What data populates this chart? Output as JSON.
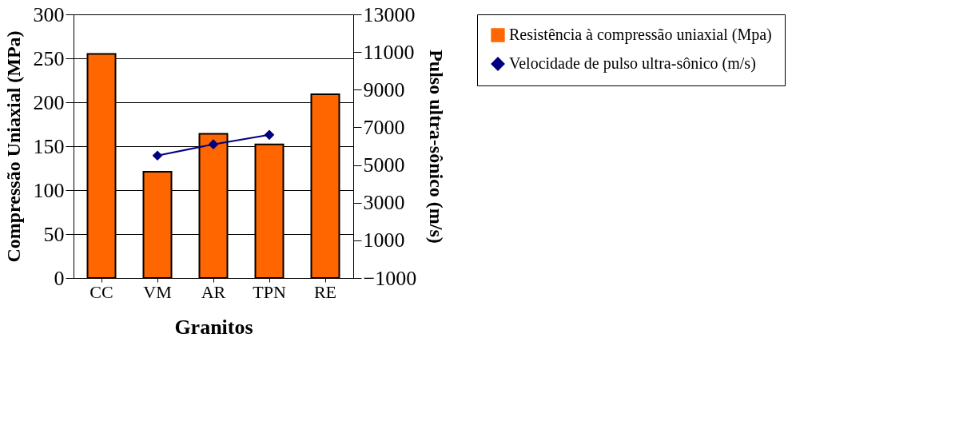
{
  "chart_data": {
    "type": "bar",
    "categories": [
      "CC",
      "VM",
      "AR",
      "TPN",
      "RE"
    ],
    "xlabel": "Granitos",
    "ylabel": "Compressão Uniaxial (MPa)",
    "y2label": "Pulso ultra-sônico (m/s)",
    "series": [
      {
        "name": "Resistência à compressão uniaxial (Mpa)",
        "color": "#ff6600",
        "values": [
          255,
          121,
          164,
          152,
          209
        ]
      },
      {
        "name": "Velocidade de pulso ultra-sônico (m/s)",
        "type": "line",
        "axis": "y2",
        "color": "#000080",
        "marker": "diamond",
        "values": [
          null,
          5500,
          6100,
          6600,
          null
        ]
      }
    ],
    "ylim": [
      0,
      300
    ],
    "yticks": [
      0,
      50,
      100,
      150,
      200,
      250,
      300
    ],
    "y2lim": [
      -1000,
      13000
    ],
    "y2ticks": [
      -1000,
      1000,
      3000,
      5000,
      7000,
      9000,
      11000,
      13000
    ],
    "grid": "y",
    "legend": "right"
  }
}
